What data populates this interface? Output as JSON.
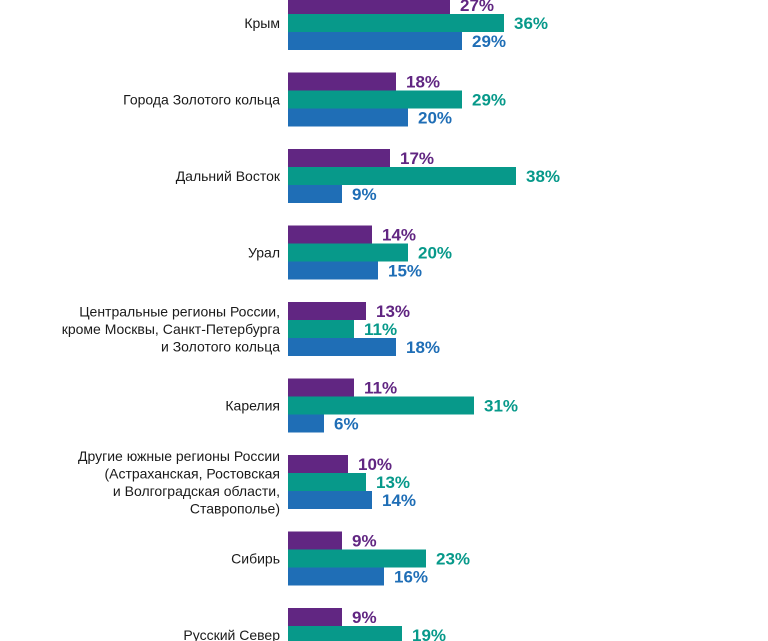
{
  "chart_data": {
    "type": "bar",
    "orientation": "horizontal",
    "value_suffix": "%",
    "categories": [
      [
        "Крым"
      ],
      [
        "Города Золотого кольца"
      ],
      [
        "Дальний Восток"
      ],
      [
        "Урал"
      ],
      [
        "Центральные регионы России,",
        "кроме Москвы, Санкт-Петербурга",
        "и Золотого кольца"
      ],
      [
        "Карелия"
      ],
      [
        "Другие южные регионы России",
        "(Астраханская, Ростовская",
        "и Волгоградская области,",
        "Ставрополье)"
      ],
      [
        "Сибирь"
      ],
      [
        "Русский Север"
      ]
    ],
    "series": [
      {
        "color": "#612682",
        "values": [
          27,
          18,
          17,
          14,
          13,
          11,
          10,
          9,
          9
        ]
      },
      {
        "color": "#07998a",
        "values": [
          36,
          29,
          38,
          20,
          11,
          31,
          13,
          23,
          19
        ]
      },
      {
        "color": "#1f6eb6",
        "values": [
          29,
          20,
          9,
          15,
          18,
          6,
          14,
          16,
          null
        ]
      }
    ],
    "grid": false,
    "legend": "none"
  }
}
